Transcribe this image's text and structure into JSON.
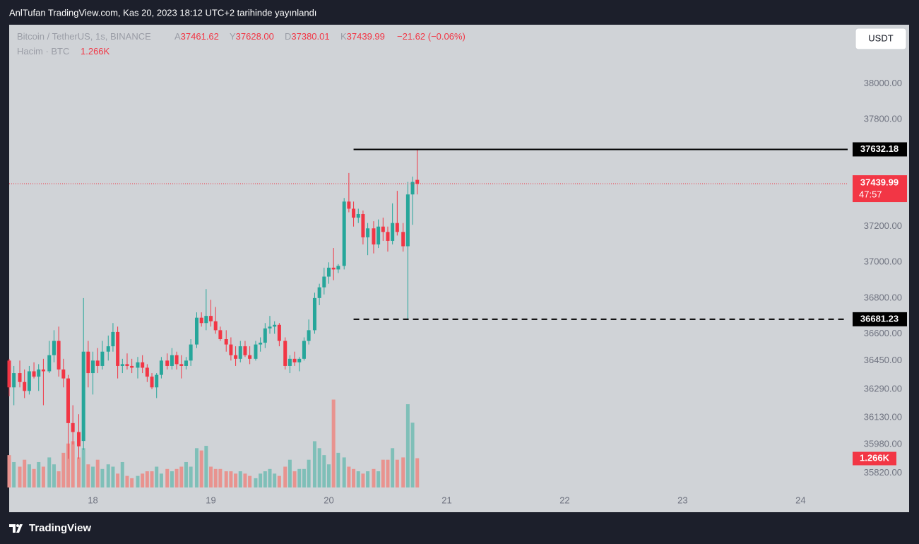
{
  "header": {
    "published": "AnlTufan TradingView.com, Kas 20, 2023 18:12 UTC+2 tarihinde yayınlandı",
    "symbol": "Bitcoin / TetherUS, 1s, BINANCE",
    "ohlc": [
      {
        "key": "A",
        "value": "37461.62"
      },
      {
        "key": "Y",
        "value": "37628.00"
      },
      {
        "key": "D",
        "value": "37380.01"
      },
      {
        "key": "K",
        "value": "37439.99"
      }
    ],
    "change": "−21.62 (−0.06%)",
    "volume_name": "Hacim · BTC",
    "volume_value": "1.266K",
    "currency": "USDT"
  },
  "footer": {
    "brand": "TradingView"
  },
  "chart_data": {
    "type": "candlestick",
    "up_color": "#26a69a",
    "down_color": "#f23645",
    "up_volume_color": "#7fbfb8",
    "down_volume_color": "#e8938f",
    "x": [
      17.29,
      17.33,
      17.38,
      17.42,
      17.46,
      17.5,
      17.54,
      17.58,
      17.63,
      17.67,
      17.71,
      17.75,
      17.79,
      17.83,
      17.88,
      17.92,
      17.96,
      18,
      18.04,
      18.08,
      18.13,
      18.17,
      18.21,
      18.25,
      18.29,
      18.33,
      18.38,
      18.42,
      18.46,
      18.5,
      18.54,
      18.58,
      18.63,
      18.67,
      18.71,
      18.75,
      18.79,
      18.83,
      18.88,
      18.92,
      18.96,
      19,
      19.04,
      19.08,
      19.13,
      19.17,
      19.21,
      19.25,
      19.29,
      19.33,
      19.38,
      19.42,
      19.46,
      19.5,
      19.54,
      19.58,
      19.63,
      19.67,
      19.71,
      19.75,
      19.79,
      19.83,
      19.88,
      19.92,
      19.96,
      20,
      20.04,
      20.08,
      20.13,
      20.17,
      20.21,
      20.25,
      20.29,
      20.33,
      20.38,
      20.42,
      20.46,
      20.5,
      20.54,
      20.58,
      20.63,
      20.67,
      20.71,
      20.75
    ],
    "open": [
      36450,
      36300,
      36380,
      36330,
      36280,
      36390,
      36360,
      36400,
      36390,
      36480,
      36560,
      36400,
      36350,
      36100,
      36050,
      36000,
      36500,
      36380,
      36450,
      36420,
      36500,
      36530,
      36610,
      36420,
      36430,
      36420,
      36410,
      36440,
      36410,
      36360,
      36300,
      36370,
      36450,
      36420,
      36480,
      36430,
      36420,
      36450,
      36540,
      36690,
      36660,
      36700,
      36670,
      36620,
      36570,
      36540,
      36480,
      36460,
      36530,
      36480,
      36460,
      36540,
      36550,
      36630,
      36640,
      36650,
      36560,
      36420,
      36460,
      36440,
      36460,
      36560,
      36620,
      36800,
      36860,
      36920,
      36970,
      36960,
      36980,
      37340,
      37300,
      37250,
      37270,
      37140,
      37190,
      37100,
      37200,
      37170,
      37120,
      37220,
      37170,
      37090,
      37380,
      37461.62
    ],
    "high": [
      36460,
      36420,
      36450,
      36400,
      36420,
      36440,
      36430,
      36460,
      36560,
      36620,
      36640,
      36460,
      36370,
      36200,
      36150,
      36800,
      36560,
      36500,
      36520,
      36560,
      36590,
      36660,
      36640,
      36460,
      36490,
      36460,
      36470,
      36480,
      36430,
      36380,
      36380,
      36470,
      36490,
      36520,
      36500,
      36480,
      36470,
      36570,
      36720,
      36720,
      36850,
      36790,
      36750,
      36640,
      36620,
      36580,
      36530,
      36560,
      36560,
      36530,
      36560,
      36580,
      36660,
      36700,
      36670,
      36660,
      36580,
      36480,
      36500,
      36470,
      36580,
      36680,
      36830,
      36880,
      36970,
      37000,
      37080,
      36990,
      37360,
      37500,
      37340,
      37300,
      37290,
      37220,
      37230,
      37240,
      37250,
      37200,
      37330,
      37400,
      37220,
      37450,
      37480,
      37628
    ],
    "low": [
      36250,
      36200,
      36300,
      36240,
      36260,
      36350,
      36280,
      36200,
      36380,
      36440,
      36360,
      36300,
      35900,
      35980,
      35900,
      35950,
      36300,
      36260,
      36380,
      36400,
      36450,
      36500,
      36350,
      36380,
      36400,
      36380,
      36350,
      36380,
      36330,
      36290,
      36240,
      36350,
      36400,
      36400,
      36400,
      36350,
      36400,
      36420,
      36520,
      36640,
      36620,
      36640,
      36600,
      36560,
      36500,
      36450,
      36420,
      36440,
      36470,
      36430,
      36450,
      36500,
      36520,
      36600,
      36600,
      36530,
      36400,
      36380,
      36420,
      36390,
      36450,
      36540,
      36600,
      36760,
      36820,
      36880,
      36900,
      36940,
      36960,
      37280,
      37200,
      37220,
      37100,
      37040,
      37050,
      37080,
      37120,
      37060,
      37100,
      37150,
      37060,
      36681,
      37210,
      37380.01
    ],
    "close": [
      36300,
      36380,
      36330,
      36280,
      36390,
      36360,
      36400,
      36390,
      36480,
      36560,
      36400,
      36350,
      36100,
      36050,
      35970,
      36500,
      36380,
      36450,
      36420,
      36500,
      36530,
      36610,
      36420,
      36430,
      36420,
      36410,
      36440,
      36410,
      36360,
      36300,
      36370,
      36450,
      36420,
      36480,
      36430,
      36420,
      36450,
      36540,
      36690,
      36660,
      36700,
      36670,
      36620,
      36570,
      36540,
      36480,
      36460,
      36530,
      36480,
      36460,
      36540,
      36550,
      36630,
      36640,
      36650,
      36560,
      36420,
      36460,
      36440,
      36460,
      36560,
      36620,
      36800,
      36860,
      36920,
      36970,
      36960,
      36980,
      37340,
      37300,
      37250,
      37270,
      37140,
      37190,
      37100,
      37200,
      37170,
      37120,
      37220,
      37170,
      37090,
      37380,
      37450,
      37439.99
    ],
    "volume": {
      "values": [
        1.4,
        1.1,
        0.9,
        1.2,
        1.0,
        0.8,
        1.1,
        0.9,
        1.3,
        1.0,
        0.7,
        1.5,
        1.9,
        2.0,
        1.3,
        1.7,
        1.0,
        0.9,
        1.2,
        0.8,
        1.0,
        0.9,
        0.6,
        1.1,
        0.5,
        0.4,
        0.5,
        0.6,
        0.7,
        0.7,
        0.9,
        0.6,
        0.8,
        0.7,
        0.8,
        0.9,
        1.1,
        0.9,
        1.7,
        1.6,
        1.8,
        0.9,
        0.8,
        0.8,
        0.7,
        0.7,
        0.6,
        0.7,
        0.6,
        0.5,
        0.4,
        0.6,
        0.7,
        0.8,
        0.6,
        0.5,
        0.9,
        1.2,
        0.7,
        0.8,
        0.8,
        1.2,
        2.0,
        1.7,
        1.4,
        1.0,
        3.8,
        1.5,
        1.3,
        0.9,
        0.8,
        0.7,
        0.6,
        0.7,
        0.8,
        0.7,
        1.2,
        1.2,
        1.7,
        1.2,
        1.3,
        3.6,
        2.8,
        1.266
      ],
      "ylim": [
        0,
        20
      ]
    },
    "xlim": [
      17.29,
      24.92
    ],
    "xticks": [
      18,
      19,
      20,
      21,
      22,
      23,
      24
    ],
    "ylim": [
      35700,
      38330
    ],
    "yticks": [
      {
        "value": 38000,
        "label": "38000.00"
      },
      {
        "value": 37800,
        "label": "37800.00"
      },
      {
        "value": 37200,
        "label": "37200.00"
      },
      {
        "value": 37000,
        "label": "37000.00"
      },
      {
        "value": 36800,
        "label": "36800.00"
      },
      {
        "value": 36600,
        "label": "36600.00"
      },
      {
        "value": 36450,
        "label": "36450.00"
      },
      {
        "value": 36290,
        "label": "36290.00"
      },
      {
        "value": 36130,
        "label": "36130.00"
      },
      {
        "value": 35980,
        "label": "35980.00"
      },
      {
        "value": 35820,
        "label": "35820.00"
      }
    ],
    "hlines": [
      {
        "value": 37632.18,
        "label": "37632.18",
        "style": "solid",
        "x_start": 20.21
      },
      {
        "value": 36681.23,
        "label": "36681.23",
        "style": "dashed",
        "x_start": 20.21
      }
    ],
    "last_price": {
      "value": 37439.99,
      "label": "37439.99",
      "countdown": "47:57"
    }
  }
}
